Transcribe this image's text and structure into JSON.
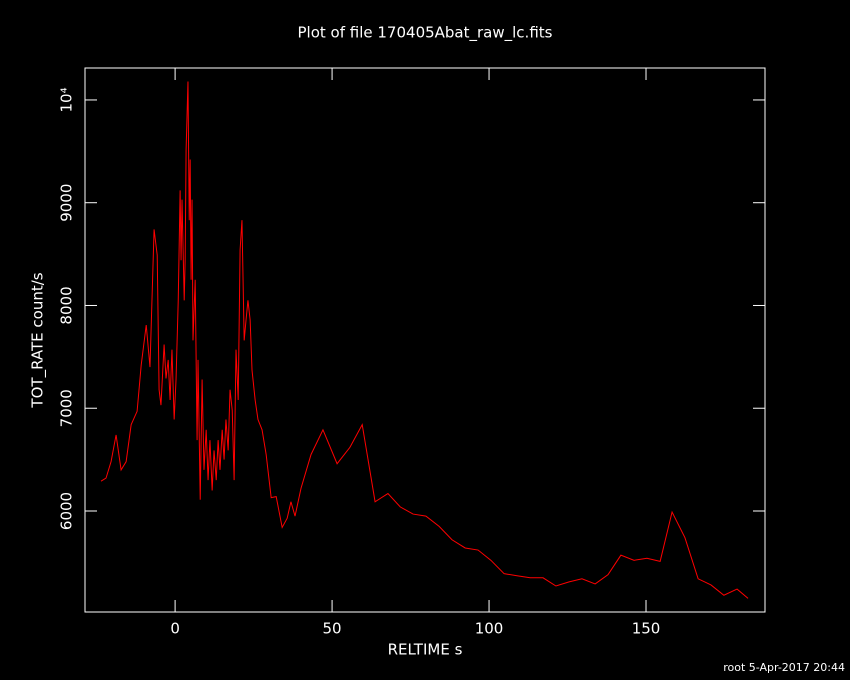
{
  "chart_data": {
    "type": "line",
    "title": "Plot of file 170405Abat_raw_lc.fits",
    "x_label": "RELTIME  s",
    "y_label": "TOT_RATE  count/s",
    "footer": "root  5-Apr-2017 20:44",
    "xlim": [
      -28.7,
      187.9
    ],
    "ylim": [
      5017,
      10311
    ],
    "xticks": [
      0,
      50,
      100,
      150
    ],
    "yticks": [
      6000,
      7000,
      8000,
      9000,
      {
        "value": 10000,
        "label": "10⁴"
      }
    ],
    "x": [
      -23.6,
      -22.0,
      -20.4,
      -18.8,
      -17.2,
      -15.6,
      -14.0,
      -12.1,
      -10.8,
      -9.2,
      -8.0,
      -6.7,
      -5.7,
      -5.1,
      -4.5,
      -3.5,
      -2.9,
      -2.2,
      -1.6,
      -1.0,
      -0.3,
      0.3,
      1.0,
      1.6,
      1.9,
      2.2,
      2.9,
      3.2,
      3.5,
      4.1,
      4.5,
      4.8,
      5.1,
      5.4,
      5.7,
      6.4,
      7.0,
      7.3,
      8.0,
      8.6,
      9.2,
      9.9,
      10.5,
      11.1,
      11.8,
      12.4,
      13.1,
      13.7,
      14.3,
      15.0,
      15.6,
      16.2,
      16.9,
      17.5,
      18.2,
      18.8,
      19.4,
      20.1,
      20.7,
      21.3,
      22.0,
      22.6,
      23.2,
      23.9,
      24.5,
      25.5,
      26.4,
      27.7,
      29.0,
      30.6,
      32.2,
      34.1,
      35.7,
      36.9,
      38.2,
      40.1,
      43.3,
      47.1,
      51.6,
      55.7,
      59.6,
      63.7,
      67.8,
      71.7,
      75.8,
      79.9,
      84.1,
      88.2,
      92.4,
      96.5,
      100.6,
      104.8,
      108.9,
      113.1,
      117.2,
      121.3,
      125.5,
      129.6,
      133.8,
      137.9,
      142.0,
      146.2,
      150.3,
      154.5,
      158.3,
      162.4,
      166.6,
      170.7,
      174.8,
      179.0,
      182.5
    ],
    "series": [
      {
        "name": "TOT_RATE",
        "color": "#ff0000",
        "values": [
          6290,
          6320,
          6480,
          6740,
          6400,
          6480,
          6840,
          6970,
          7420,
          7810,
          7400,
          8740,
          8490,
          7180,
          7030,
          7620,
          7290,
          7470,
          7080,
          7570,
          6890,
          7280,
          8050,
          9120,
          8440,
          9030,
          8050,
          8440,
          9510,
          10180,
          8830,
          9420,
          8250,
          9030,
          7660,
          8250,
          6690,
          7470,
          6110,
          7280,
          6400,
          6790,
          6300,
          6690,
          6200,
          6590,
          6300,
          6690,
          6400,
          6790,
          6500,
          6890,
          6590,
          7180,
          6980,
          6300,
          7570,
          7080,
          8540,
          8830,
          7660,
          7860,
          8050,
          7860,
          7370,
          7080,
          6890,
          6790,
          6550,
          6130,
          6140,
          5840,
          5930,
          6090,
          5950,
          6220,
          6550,
          6790,
          6460,
          6620,
          6840,
          6090,
          6170,
          6040,
          5970,
          5950,
          5850,
          5720,
          5640,
          5620,
          5520,
          5390,
          5370,
          5350,
          5350,
          5270,
          5310,
          5340,
          5290,
          5380,
          5570,
          5520,
          5540,
          5510,
          5990,
          5740,
          5340,
          5280,
          5180,
          5240,
          5150
        ]
      }
    ]
  }
}
